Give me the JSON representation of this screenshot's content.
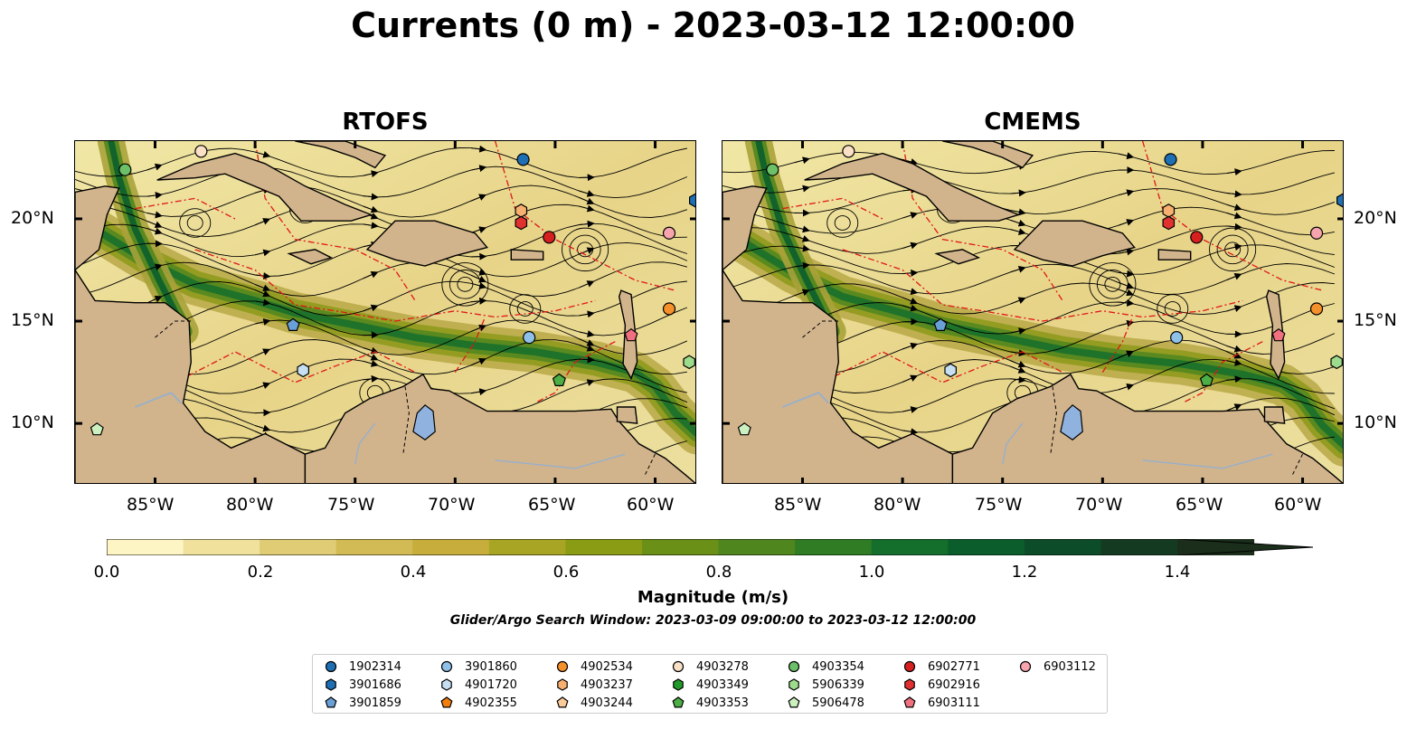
{
  "title": "Currents (0 m) - 2023-03-12 12:00:00",
  "panels": [
    {
      "title": "RTOFS"
    },
    {
      "title": "CMEMS"
    }
  ],
  "axes": {
    "x_ticks": [
      "85°W",
      "80°W",
      "75°W",
      "70°W",
      "65°W",
      "60°W"
    ],
    "y_ticks": [
      "20°N",
      "15°N",
      "10°N"
    ]
  },
  "colorbar": {
    "label": "Magnitude (m/s)",
    "ticks": [
      "0.0",
      "0.2",
      "0.4",
      "0.6",
      "0.8",
      "1.0",
      "1.2",
      "1.4"
    ],
    "colors": [
      "#fdf6c4",
      "#f0e29c",
      "#e0cc74",
      "#d2bb54",
      "#c6ad3c",
      "#a8a424",
      "#8a9c14",
      "#6b9018",
      "#4f861e",
      "#2f7c24",
      "#146e2c",
      "#0b5e2c",
      "#0d4c28",
      "#143b22",
      "#1b2e1b"
    ]
  },
  "search_window": "Glider/Argo Search Window: 2023-03-09 09:00:00 to 2023-03-12 12:00:00",
  "legend": {
    "items": [
      {
        "label": "1902314",
        "marker": "circle",
        "color": "#1f6fb4"
      },
      {
        "label": "3901686",
        "marker": "hexagon",
        "color": "#1f6fb4"
      },
      {
        "label": "3901859",
        "marker": "pentagon",
        "color": "#6aa0d8"
      },
      {
        "label": "3901860",
        "marker": "circle",
        "color": "#8ec0e8"
      },
      {
        "label": "4901720",
        "marker": "hexagon",
        "color": "#c6dff2"
      },
      {
        "label": "4902355",
        "marker": "pentagon",
        "color": "#f07f0e"
      },
      {
        "label": "4902534",
        "marker": "circle",
        "color": "#f5902a"
      },
      {
        "label": "4903237",
        "marker": "hexagon",
        "color": "#f8b070"
      },
      {
        "label": "4903244",
        "marker": "pentagon",
        "color": "#fbcb9a"
      },
      {
        "label": "4903278",
        "marker": "circle",
        "color": "#fbe0c8"
      },
      {
        "label": "4903349",
        "marker": "hexagon",
        "color": "#229a2a"
      },
      {
        "label": "4903353",
        "marker": "pentagon",
        "color": "#4cae44"
      },
      {
        "label": "4903354",
        "marker": "circle",
        "color": "#6cc068"
      },
      {
        "label": "5906339",
        "marker": "hexagon",
        "color": "#9cdc8c"
      },
      {
        "label": "5906478",
        "marker": "pentagon",
        "color": "#cdf0c0"
      },
      {
        "label": "6902771",
        "marker": "circle",
        "color": "#d62020"
      },
      {
        "label": "6902916",
        "marker": "hexagon",
        "color": "#e03030"
      },
      {
        "label": "6903111",
        "marker": "pentagon",
        "color": "#f07080"
      },
      {
        "label": "6903112",
        "marker": "circle",
        "color": "#f7a4ae"
      }
    ]
  },
  "floats": {
    "rtofs": [
      {
        "id": "4903278",
        "lon": -82.7,
        "lat": 23.3
      },
      {
        "id": "4903354",
        "lon": -86.5,
        "lat": 22.4
      },
      {
        "id": "1902314",
        "lon": -66.6,
        "lat": 22.9
      },
      {
        "id": "4903237",
        "lon": -66.7,
        "lat": 20.4
      },
      {
        "id": "6902916",
        "lon": -66.7,
        "lat": 19.8
      },
      {
        "id": "6902771",
        "lon": -65.3,
        "lat": 19.1
      },
      {
        "id": "6903112",
        "lon": -59.3,
        "lat": 19.3
      },
      {
        "id": "3901860",
        "lon": -66.3,
        "lat": 14.2
      },
      {
        "id": "3901859",
        "lon": -78.1,
        "lat": 14.8
      },
      {
        "id": "6903111",
        "lon": -61.2,
        "lat": 14.3
      },
      {
        "id": "4902534",
        "lon": -59.3,
        "lat": 15.6
      },
      {
        "id": "4901720",
        "lon": -77.6,
        "lat": 12.6
      },
      {
        "id": "4903353",
        "lon": -64.8,
        "lat": 12.1
      },
      {
        "id": "5906339",
        "lon": -58.3,
        "lat": 13.0
      },
      {
        "id": "5906478",
        "lon": -87.9,
        "lat": 9.7
      },
      {
        "id": "3901686",
        "lon": -58.0,
        "lat": 20.9
      }
    ],
    "cmems": [
      {
        "id": "4903278",
        "lon": -82.7,
        "lat": 23.3
      },
      {
        "id": "4903354",
        "lon": -86.5,
        "lat": 22.4
      },
      {
        "id": "1902314",
        "lon": -66.6,
        "lat": 22.9
      },
      {
        "id": "4903237",
        "lon": -66.7,
        "lat": 20.4
      },
      {
        "id": "6902916",
        "lon": -66.7,
        "lat": 19.8
      },
      {
        "id": "6902771",
        "lon": -65.3,
        "lat": 19.1
      },
      {
        "id": "6903112",
        "lon": -59.3,
        "lat": 19.3
      },
      {
        "id": "3901860",
        "lon": -66.3,
        "lat": 14.2
      },
      {
        "id": "3901859",
        "lon": -78.1,
        "lat": 14.8
      },
      {
        "id": "6903111",
        "lon": -61.2,
        "lat": 14.3
      },
      {
        "id": "4902534",
        "lon": -59.3,
        "lat": 15.6
      },
      {
        "id": "4901720",
        "lon": -77.6,
        "lat": 12.6
      },
      {
        "id": "4903353",
        "lon": -64.8,
        "lat": 12.1
      },
      {
        "id": "5906339",
        "lon": -58.3,
        "lat": 13.0
      },
      {
        "id": "5906478",
        "lon": -87.9,
        "lat": 9.7
      },
      {
        "id": "3901686",
        "lon": -58.0,
        "lat": 20.9
      }
    ]
  }
}
